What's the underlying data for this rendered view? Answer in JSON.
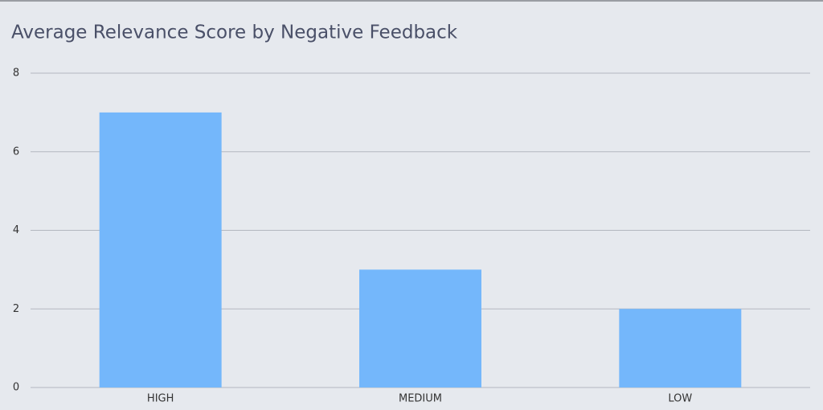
{
  "chart_data": {
    "type": "bar",
    "title": "Average Relevance Score by Negative Feedback",
    "categories": [
      "HIGH",
      "MEDIUM",
      "LOW"
    ],
    "values": [
      7,
      3,
      2
    ],
    "color": "#74b7fb",
    "ylim": [
      0,
      8
    ],
    "yticks": [
      0,
      2,
      4,
      6,
      8
    ],
    "grid": true
  }
}
